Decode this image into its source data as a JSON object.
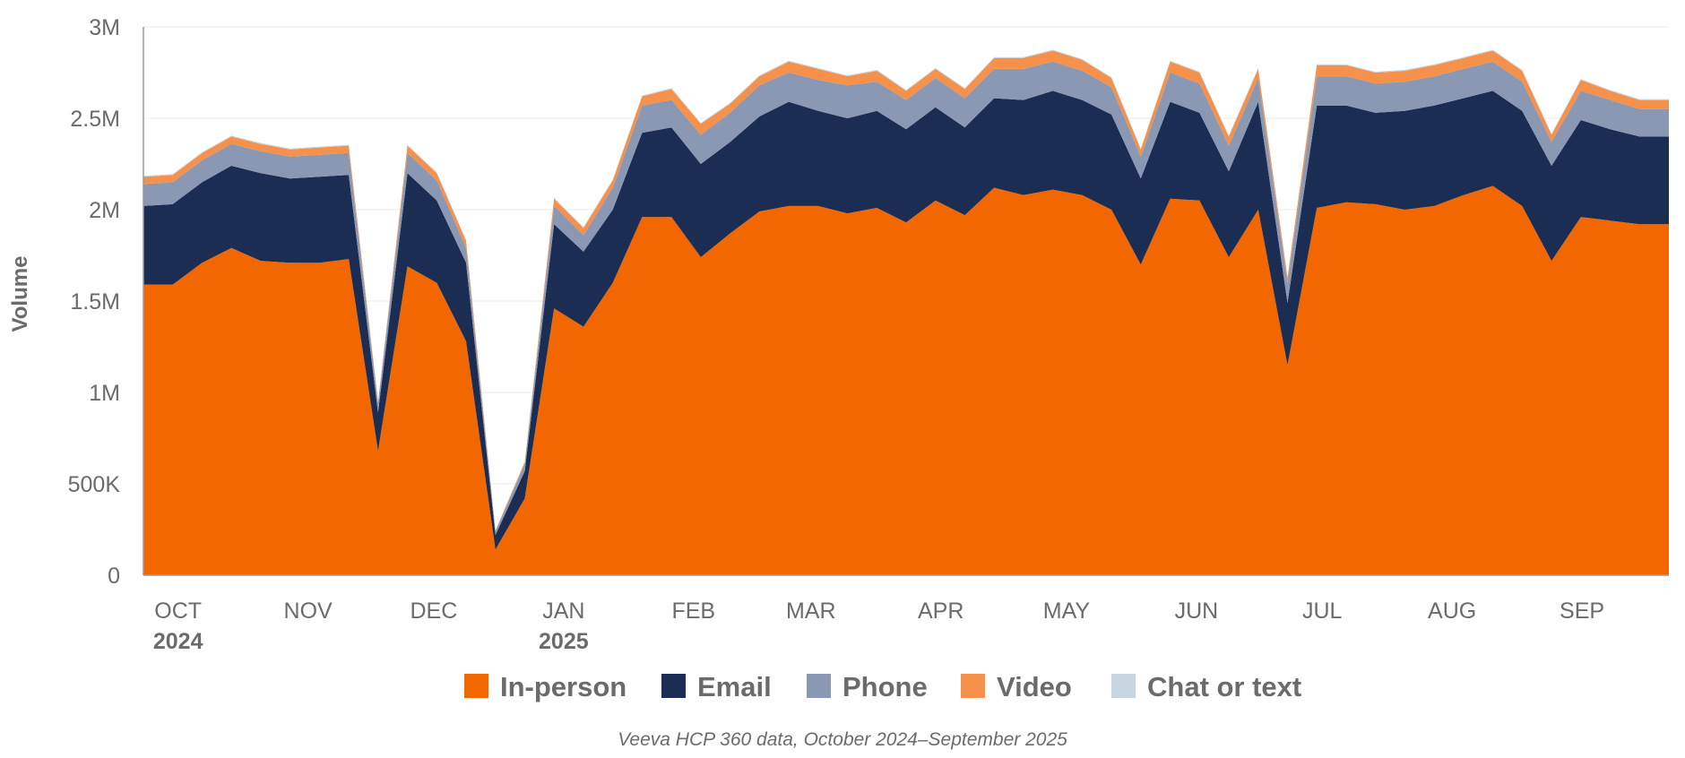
{
  "chart_data": {
    "type": "area",
    "stacked": true,
    "ylabel": "Volume",
    "ylim": [
      0,
      3000000
    ],
    "y_ticks": [
      {
        "value": 0,
        "label": "0"
      },
      {
        "value": 500000,
        "label": "500K"
      },
      {
        "value": 1000000,
        "label": "1M"
      },
      {
        "value": 1500000,
        "label": "1.5M"
      },
      {
        "value": 2000000,
        "label": "2M"
      },
      {
        "value": 2500000,
        "label": "2.5M"
      },
      {
        "value": 3000000,
        "label": "3M"
      }
    ],
    "x_range": [
      "2024-09-30",
      "2025-09-29"
    ],
    "x_ticks": [
      {
        "date": "2024-10-01",
        "label": "OCT",
        "year": "2024"
      },
      {
        "date": "2024-11-01",
        "label": "NOV",
        "year": ""
      },
      {
        "date": "2024-12-01",
        "label": "DEC",
        "year": ""
      },
      {
        "date": "2025-01-01",
        "label": "JAN",
        "year": "2025"
      },
      {
        "date": "2025-02-01",
        "label": "FEB",
        "year": ""
      },
      {
        "date": "2025-03-01",
        "label": "MAR",
        "year": ""
      },
      {
        "date": "2025-04-01",
        "label": "APR",
        "year": ""
      },
      {
        "date": "2025-05-01",
        "label": "MAY",
        "year": ""
      },
      {
        "date": "2025-06-01",
        "label": "JUN",
        "year": ""
      },
      {
        "date": "2025-07-01",
        "label": "JUL",
        "year": ""
      },
      {
        "date": "2025-08-01",
        "label": "AUG",
        "year": ""
      },
      {
        "date": "2025-09-01",
        "label": "SEP",
        "year": ""
      }
    ],
    "grid": true,
    "legend_position": "bottom",
    "x": [
      "2024-09-30",
      "2024-10-07",
      "2024-10-14",
      "2024-10-21",
      "2024-10-28",
      "2024-11-04",
      "2024-11-11",
      "2024-11-18",
      "2024-11-25",
      "2024-12-02",
      "2024-12-09",
      "2024-12-16",
      "2024-12-23",
      "2024-12-30",
      "2025-01-06",
      "2025-01-13",
      "2025-01-20",
      "2025-01-27",
      "2025-02-03",
      "2025-02-10",
      "2025-02-17",
      "2025-02-24",
      "2025-03-03",
      "2025-03-10",
      "2025-03-17",
      "2025-03-24",
      "2025-03-31",
      "2025-04-07",
      "2025-04-14",
      "2025-04-21",
      "2025-04-28",
      "2025-05-05",
      "2025-05-12",
      "2025-05-19",
      "2025-05-26",
      "2025-06-02",
      "2025-06-09",
      "2025-06-16",
      "2025-06-23",
      "2025-06-30",
      "2025-07-07",
      "2025-07-14",
      "2025-07-21",
      "2025-07-28",
      "2025-08-04",
      "2025-08-11",
      "2025-08-18",
      "2025-08-25",
      "2025-09-01",
      "2025-09-08",
      "2025-09-15",
      "2025-09-22",
      "2025-09-29"
    ],
    "series": [
      {
        "name": "In-person",
        "color": "#F26700",
        "values": [
          1590000,
          1590000,
          1710000,
          1790000,
          1720000,
          1710000,
          1710000,
          1730000,
          680000,
          1690000,
          1600000,
          1280000,
          140000,
          420000,
          1460000,
          1360000,
          1600000,
          1960000,
          1960000,
          1740000,
          1870000,
          1990000,
          2020000,
          2020000,
          1980000,
          2010000,
          1930000,
          2050000,
          1970000,
          2120000,
          2080000,
          2110000,
          2080000,
          2000000,
          1700000,
          2060000,
          2050000,
          1740000,
          2000000,
          1150000,
          2010000,
          2040000,
          2030000,
          2000000,
          2020000,
          2080000,
          2130000,
          2020000,
          1720000,
          1960000,
          1940000,
          1920000,
          1920000
        ]
      },
      {
        "name": "Email",
        "color": "#1B2D52",
        "values": [
          430000,
          440000,
          440000,
          450000,
          480000,
          460000,
          470000,
          460000,
          210000,
          510000,
          450000,
          430000,
          80000,
          150000,
          460000,
          410000,
          400000,
          460000,
          490000,
          510000,
          500000,
          520000,
          570000,
          520000,
          520000,
          530000,
          510000,
          510000,
          480000,
          490000,
          520000,
          540000,
          520000,
          520000,
          470000,
          530000,
          480000,
          470000,
          590000,
          340000,
          560000,
          530000,
          500000,
          540000,
          550000,
          530000,
          520000,
          520000,
          520000,
          530000,
          500000,
          480000,
          480000
        ]
      },
      {
        "name": "Phone",
        "color": "#8B98B4",
        "values": [
          120000,
          120000,
          120000,
          120000,
          120000,
          120000,
          120000,
          120000,
          50000,
          110000,
          110000,
          80000,
          20000,
          40000,
          100000,
          90000,
          120000,
          150000,
          150000,
          160000,
          160000,
          170000,
          160000,
          170000,
          180000,
          160000,
          160000,
          160000,
          160000,
          160000,
          170000,
          160000,
          160000,
          150000,
          120000,
          160000,
          160000,
          140000,
          130000,
          110000,
          160000,
          160000,
          160000,
          160000,
          160000,
          160000,
          160000,
          160000,
          130000,
          160000,
          160000,
          150000,
          150000
        ]
      },
      {
        "name": "Video",
        "color": "#F5914A",
        "values": [
          40000,
          40000,
          40000,
          40000,
          40000,
          40000,
          40000,
          40000,
          10000,
          40000,
          40000,
          40000,
          5000,
          10000,
          40000,
          40000,
          40000,
          50000,
          60000,
          60000,
          50000,
          50000,
          60000,
          60000,
          50000,
          60000,
          50000,
          50000,
          50000,
          60000,
          60000,
          60000,
          60000,
          50000,
          40000,
          60000,
          60000,
          50000,
          50000,
          30000,
          60000,
          60000,
          60000,
          60000,
          60000,
          60000,
          60000,
          60000,
          40000,
          60000,
          50000,
          50000,
          50000
        ]
      },
      {
        "name": "Chat or text",
        "color": "#C8D6E2",
        "values": [
          5000,
          5000,
          5000,
          5000,
          5000,
          5000,
          5000,
          5000,
          2000,
          5000,
          5000,
          5000,
          1000,
          2000,
          5000,
          5000,
          5000,
          5000,
          5000,
          5000,
          5000,
          5000,
          5000,
          5000,
          5000,
          5000,
          5000,
          5000,
          5000,
          5000,
          5000,
          5000,
          5000,
          5000,
          5000,
          5000,
          5000,
          5000,
          5000,
          5000,
          5000,
          5000,
          5000,
          5000,
          5000,
          5000,
          5000,
          5000,
          5000,
          5000,
          5000,
          5000,
          5000
        ]
      }
    ],
    "source_note": "Veeva HCP 360 data, October 2024–September 2025"
  }
}
